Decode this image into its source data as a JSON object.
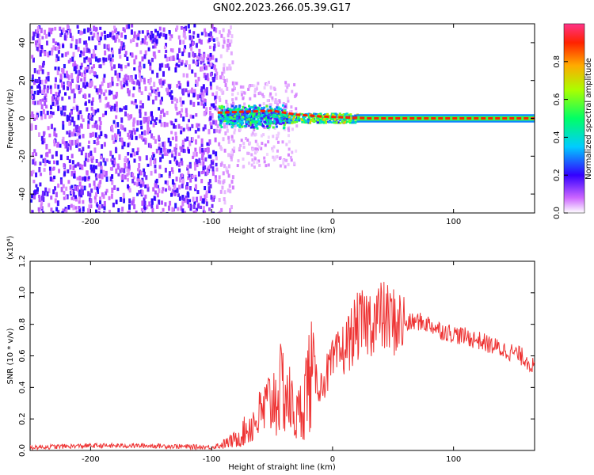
{
  "title": "GN02.2023.266.05.39.G17",
  "chart_data": [
    {
      "type": "heatmap",
      "xlabel": "Height of straight line (km)",
      "ylabel": "Frequency (Hz)",
      "xlim": [
        -250,
        167
      ],
      "ylim": [
        -50,
        50
      ],
      "xticks": [
        -200,
        -100,
        0,
        100
      ],
      "yticks": [
        -40,
        -20,
        0,
        20,
        40
      ],
      "colorbar": {
        "label": "Normalized spectral amplitude",
        "range": [
          0,
          1
        ],
        "ticks": [
          "0.0",
          "0.2",
          "0.4",
          "0.6",
          "0.8"
        ]
      },
      "regions": [
        {
          "x": [
            -250,
            -97
          ],
          "y": [
            -50,
            50
          ],
          "level": 0.12
        },
        {
          "x": [
            -95,
            -40
          ],
          "y": [
            -5,
            8
          ],
          "level": 0.45
        },
        {
          "x": [
            -40,
            20
          ],
          "y": [
            -2,
            3
          ],
          "level": 0.75
        },
        {
          "x": [
            20,
            167
          ],
          "y": [
            -1,
            1
          ],
          "level": 0.9
        }
      ],
      "ridge": {
        "x": [
          -95,
          -50,
          -30,
          -10,
          10,
          30,
          60,
          100,
          167
        ],
        "y": [
          3,
          4,
          2,
          1,
          0.5,
          0,
          0,
          0,
          0
        ]
      }
    },
    {
      "type": "line",
      "title": "",
      "xlabel": "Height of straight line (km)",
      "ylabel": "SNR (10 * v/v)",
      "yscale_label": "(x10⁴)",
      "xlim": [
        -250,
        167
      ],
      "ylim": [
        0,
        1.2
      ],
      "xticks": [
        -200,
        -100,
        0,
        100
      ],
      "yticks": [
        "0.0",
        "0.2",
        "0.4",
        "0.6",
        "0.8",
        "1.0",
        "1.2"
      ],
      "series": [
        {
          "color": "#ee3333",
          "x": [
            -250,
            -200,
            -150,
            -100,
            -90,
            -80,
            -70,
            -60,
            -50,
            -40,
            -35,
            -30,
            -25,
            -20,
            -15,
            -10,
            -5,
            0,
            10,
            20,
            30,
            40,
            50,
            60,
            70,
            80,
            90,
            100,
            110,
            120,
            130,
            140,
            150,
            160,
            167
          ],
          "y": [
            0.02,
            0.03,
            0.03,
            0.02,
            0.04,
            0.07,
            0.14,
            0.22,
            0.32,
            0.4,
            0.3,
            0.2,
            0.28,
            0.45,
            0.48,
            0.4,
            0.48,
            0.55,
            0.65,
            0.78,
            0.82,
            0.85,
            0.82,
            0.8,
            0.82,
            0.8,
            0.76,
            0.74,
            0.72,
            0.7,
            0.67,
            0.64,
            0.62,
            0.58,
            0.52
          ]
        }
      ]
    }
  ],
  "colors": {
    "line": "#ee3333",
    "frame": "#000000"
  }
}
